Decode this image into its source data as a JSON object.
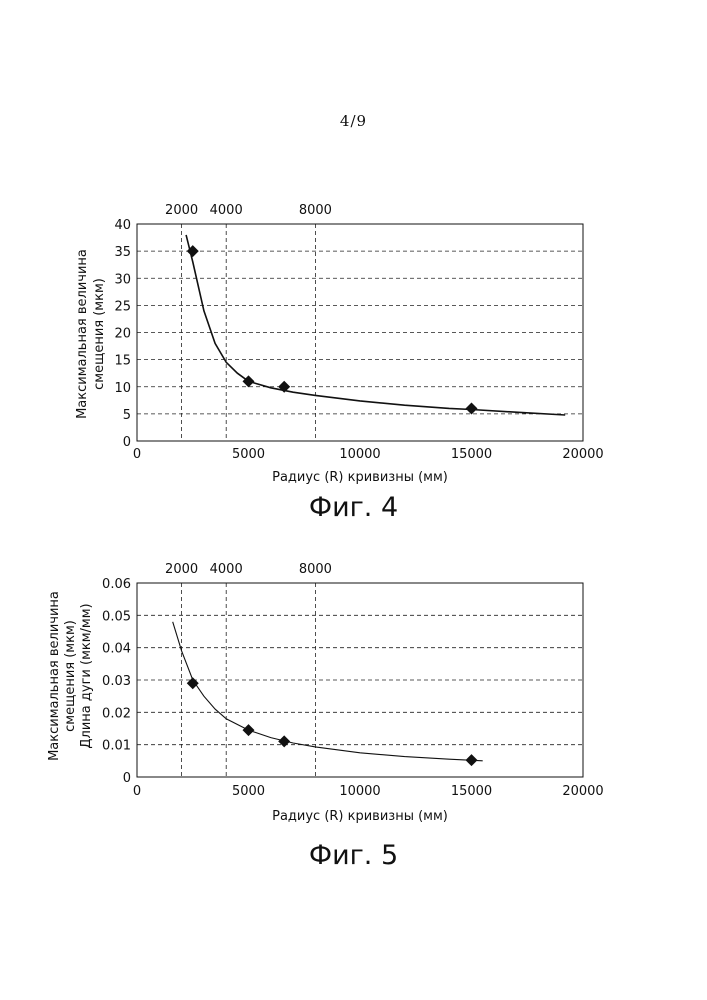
{
  "page": {
    "number": "4/9"
  },
  "chart_data": [
    {
      "type": "scatter",
      "caption": "Фиг. 4",
      "xlabel": "Радиус (R) кривизны (мм)",
      "ylabel_lines": [
        "Максимальная величина",
        "смещения (мкм)"
      ],
      "xlim": [
        0,
        20000
      ],
      "ylim": [
        0,
        40
      ],
      "xticks": [
        {
          "value": 0,
          "label": "0"
        },
        {
          "value": 5000,
          "label": "5000"
        },
        {
          "value": 10000,
          "label": "10000"
        },
        {
          "value": 15000,
          "label": "15000"
        },
        {
          "value": 20000,
          "label": "20000"
        }
      ],
      "yticks": [
        {
          "value": 0,
          "label": "0"
        },
        {
          "value": 5,
          "label": "5"
        },
        {
          "value": 10,
          "label": "10"
        },
        {
          "value": 15,
          "label": "15"
        },
        {
          "value": 20,
          "label": "20"
        },
        {
          "value": 25,
          "label": "25"
        },
        {
          "value": 30,
          "label": "30"
        },
        {
          "value": 35,
          "label": "35"
        },
        {
          "value": 40,
          "label": "40"
        }
      ],
      "top_markers": [
        {
          "value": 2000,
          "label": "2000"
        },
        {
          "value": 4000,
          "label": "4000"
        },
        {
          "value": 8000,
          "label": "8000"
        }
      ],
      "grid": "dashed horizontal",
      "points": [
        {
          "x": 2500,
          "y": 35
        },
        {
          "x": 5000,
          "y": 11
        },
        {
          "x": 6600,
          "y": 10
        },
        {
          "x": 15000,
          "y": 6
        }
      ],
      "trend_curve": [
        [
          2200,
          38
        ],
        [
          2500,
          33
        ],
        [
          3000,
          24
        ],
        [
          3500,
          18
        ],
        [
          4000,
          14.5
        ],
        [
          4500,
          12.5
        ],
        [
          5000,
          11
        ],
        [
          6000,
          9.8
        ],
        [
          7000,
          9
        ],
        [
          8000,
          8.4
        ],
        [
          10000,
          7.4
        ],
        [
          12000,
          6.6
        ],
        [
          14000,
          6.0
        ],
        [
          15000,
          5.8
        ],
        [
          17000,
          5.3
        ],
        [
          19200,
          4.8
        ]
      ]
    },
    {
      "type": "scatter",
      "caption": "Фиг. 5",
      "xlabel": "Радиус (R) кривизны (мм)",
      "ylabel_lines": [
        "Максимальная величина",
        "смещения (мкм)",
        "Длина дуги (мкм/мм)"
      ],
      "xlim": [
        0,
        20000
      ],
      "ylim": [
        0,
        0.06
      ],
      "xticks": [
        {
          "value": 0,
          "label": "0"
        },
        {
          "value": 5000,
          "label": "5000"
        },
        {
          "value": 10000,
          "label": "10000"
        },
        {
          "value": 15000,
          "label": "15000"
        },
        {
          "value": 20000,
          "label": "20000"
        }
      ],
      "yticks": [
        {
          "value": 0,
          "label": "0"
        },
        {
          "value": 0.01,
          "label": "0.01"
        },
        {
          "value": 0.02,
          "label": "0.02"
        },
        {
          "value": 0.03,
          "label": "0.03"
        },
        {
          "value": 0.04,
          "label": "0.04"
        },
        {
          "value": 0.05,
          "label": "0.05"
        },
        {
          "value": 0.06,
          "label": "0.06"
        }
      ],
      "top_markers": [
        {
          "value": 2000,
          "label": "2000"
        },
        {
          "value": 4000,
          "label": "4000"
        },
        {
          "value": 8000,
          "label": "8000"
        }
      ],
      "grid": "dashed horizontal",
      "points": [
        {
          "x": 2500,
          "y": 0.029
        },
        {
          "x": 5000,
          "y": 0.0145
        },
        {
          "x": 6600,
          "y": 0.011
        },
        {
          "x": 15000,
          "y": 0.0052
        }
      ],
      "trend_curve": [
        [
          1600,
          0.048
        ],
        [
          2000,
          0.039
        ],
        [
          2500,
          0.03
        ],
        [
          3000,
          0.025
        ],
        [
          3500,
          0.021
        ],
        [
          4000,
          0.018
        ],
        [
          5000,
          0.0145
        ],
        [
          6000,
          0.0122
        ],
        [
          7000,
          0.0105
        ],
        [
          8000,
          0.0093
        ],
        [
          10000,
          0.0075
        ],
        [
          12000,
          0.0063
        ],
        [
          14000,
          0.0055
        ],
        [
          15500,
          0.005
        ]
      ]
    }
  ]
}
